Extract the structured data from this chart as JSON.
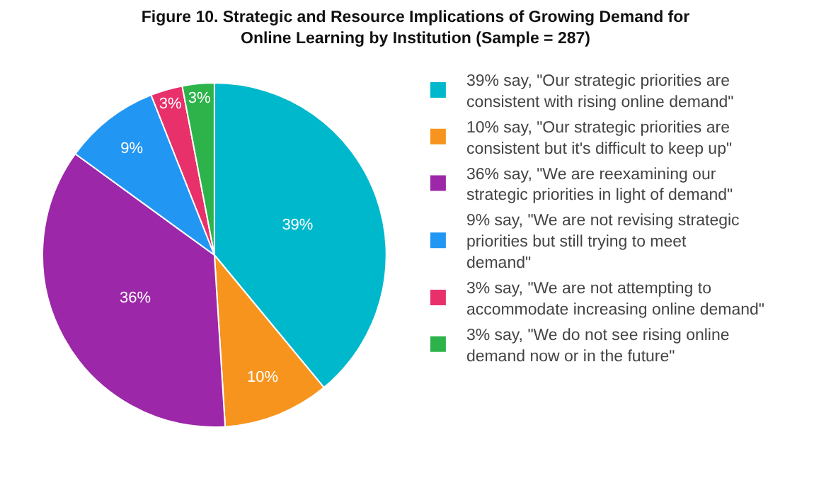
{
  "chart_data": {
    "type": "pie",
    "title": "Figure 10. Strategic and Resource Implications of Growing Demand for Online Learning by Institution (Sample = 287)",
    "categories": [
      "39% say, \"Our strategic priorities are consistent with rising online demand\"",
      "10% say, \"Our strategic priorities are consistent but it's difficult to keep up\"",
      "36% say, \"We are reexamining our strategic priorities in light of demand\"",
      "9% say, \"We are not revising strategic priorities but still trying to meet demand\"",
      "3% say, \"We are not attempting to accommodate increasing online demand\"",
      "3% say, \"We do not see rising online demand now or in the future\""
    ],
    "values": [
      39,
      10,
      36,
      9,
      3,
      3
    ],
    "value_labels": [
      "39%",
      "10%",
      "36%",
      "9%",
      "3%",
      "3%"
    ],
    "colors": [
      "#00b8cc",
      "#f7941d",
      "#9c27a8",
      "#2196f3",
      "#e8306a",
      "#2db34a"
    ],
    "legend": "right"
  }
}
